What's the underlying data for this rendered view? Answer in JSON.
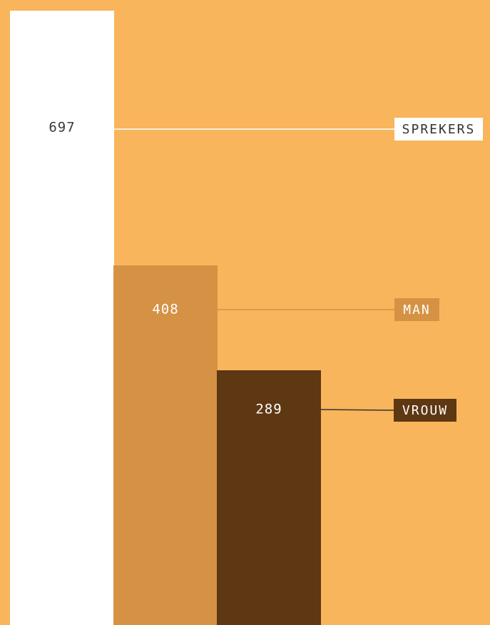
{
  "colors": {
    "background": "#f8b55b",
    "sprekers": "#ffffff",
    "man": "#d59244",
    "vrouw": "#5e3713",
    "value_text_light": "#3a3a3a",
    "value_text_dark": "#ffffff",
    "tag_text_sprekers": "#333333",
    "tag_text_man": "#ffffff",
    "tag_text_vrouw": "#ffffff",
    "connector_sprekers": "#ffffff",
    "connector_man": "#d59244",
    "connector_vrouw": "#333333"
  },
  "chart_data": {
    "type": "bar",
    "title": "",
    "xlabel": "",
    "ylabel": "",
    "grid": false,
    "legend": "right, labels connected to bars",
    "ylim": [
      0,
      697
    ],
    "categories": [
      "SPREKERS",
      "MAN",
      "VROUW"
    ],
    "values": [
      697,
      408,
      289
    ],
    "value_labels": [
      "697",
      "408",
      "289"
    ],
    "series_keys": [
      "sprekers",
      "man",
      "vrouw"
    ]
  }
}
